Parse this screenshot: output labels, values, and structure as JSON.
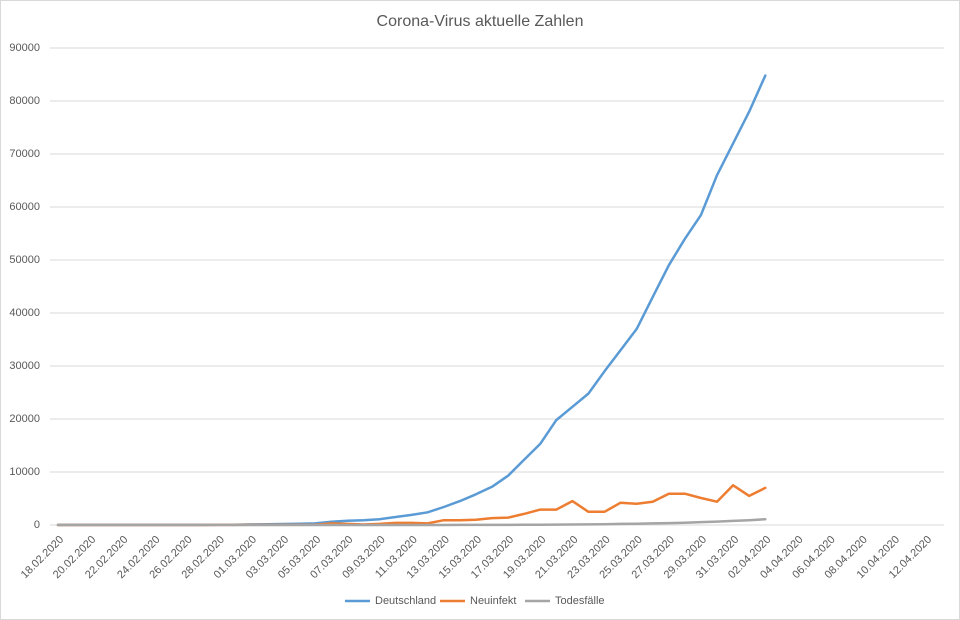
{
  "chart_data": {
    "type": "line",
    "title": "Corona-Virus aktuelle Zahlen",
    "categories": [
      "18.02.2020",
      null,
      "20.02.2020",
      null,
      "22.02.2020",
      null,
      "24.02.2020",
      null,
      "26.02.2020",
      null,
      "28.02.2020",
      null,
      "01.03.2020",
      null,
      "03.03.2020",
      null,
      "05.03.2020",
      null,
      "07.03.2020",
      null,
      "09.03.2020",
      null,
      "11.03.2020",
      null,
      "13.03.2020",
      null,
      "15.03.2020",
      null,
      "17.03.2020",
      null,
      "19.03.2020",
      null,
      "21.03.2020",
      null,
      "23.03.2020",
      null,
      "25.03.2020",
      null,
      "27.03.2020",
      null,
      "29.03.2020",
      null,
      "31.03.2020",
      null,
      "02.04.2020",
      null,
      "04.04.2020",
      null,
      "06.04.2020",
      null,
      "08.04.2020",
      null,
      "10.04.2020",
      null,
      "12.04.2020"
    ],
    "series": [
      {
        "name": "Deutschland",
        "color": "#5b9bd5",
        "values": [
          16,
          16,
          16,
          16,
          16,
          16,
          16,
          16,
          18,
          26,
          53,
          66,
          117,
          150,
          188,
          240,
          300,
          600,
          800,
          900,
          1100,
          1500,
          1900,
          2400,
          3400,
          4500,
          5800,
          7200,
          9300,
          12300,
          15300,
          19800,
          22300,
          24800,
          29000,
          33000,
          37000,
          43000,
          49000,
          54000,
          58500,
          66000,
          72000,
          78000,
          84800,
          null,
          null,
          null,
          null,
          null,
          null,
          null,
          null,
          null,
          null
        ]
      },
      {
        "name": "Neuinfekt",
        "color": "#ed7d31",
        "values": [
          0,
          0,
          0,
          0,
          0,
          0,
          0,
          0,
          2,
          8,
          27,
          13,
          51,
          33,
          38,
          52,
          60,
          300,
          200,
          100,
          200,
          400,
          400,
          300,
          900,
          900,
          1000,
          1300,
          1400,
          2100,
          2900,
          2900,
          4500,
          2500,
          2500,
          4200,
          4000,
          4400,
          5900,
          5900,
          5100,
          4400,
          7500,
          5500,
          7000,
          null,
          null,
          null,
          null,
          null,
          null,
          null,
          null,
          null,
          null
        ]
      },
      {
        "name": "Todesfälle",
        "color": "#a5a5a5",
        "values": [
          0,
          0,
          0,
          0,
          0,
          0,
          0,
          0,
          0,
          0,
          0,
          0,
          0,
          0,
          0,
          0,
          0,
          0,
          0,
          2,
          2,
          3,
          4,
          6,
          8,
          10,
          13,
          17,
          24,
          30,
          50,
          70,
          100,
          120,
          150,
          200,
          230,
          300,
          350,
          430,
          540,
          650,
          780,
          900,
          1100,
          null,
          null,
          null,
          null,
          null,
          null,
          null,
          null,
          null,
          null
        ]
      }
    ],
    "ylim": [
      0,
      90000
    ],
    "yticks": [
      0,
      10000,
      20000,
      30000,
      40000,
      50000,
      60000,
      70000,
      80000,
      90000
    ],
    "grid": true,
    "legend": "bottom"
  }
}
